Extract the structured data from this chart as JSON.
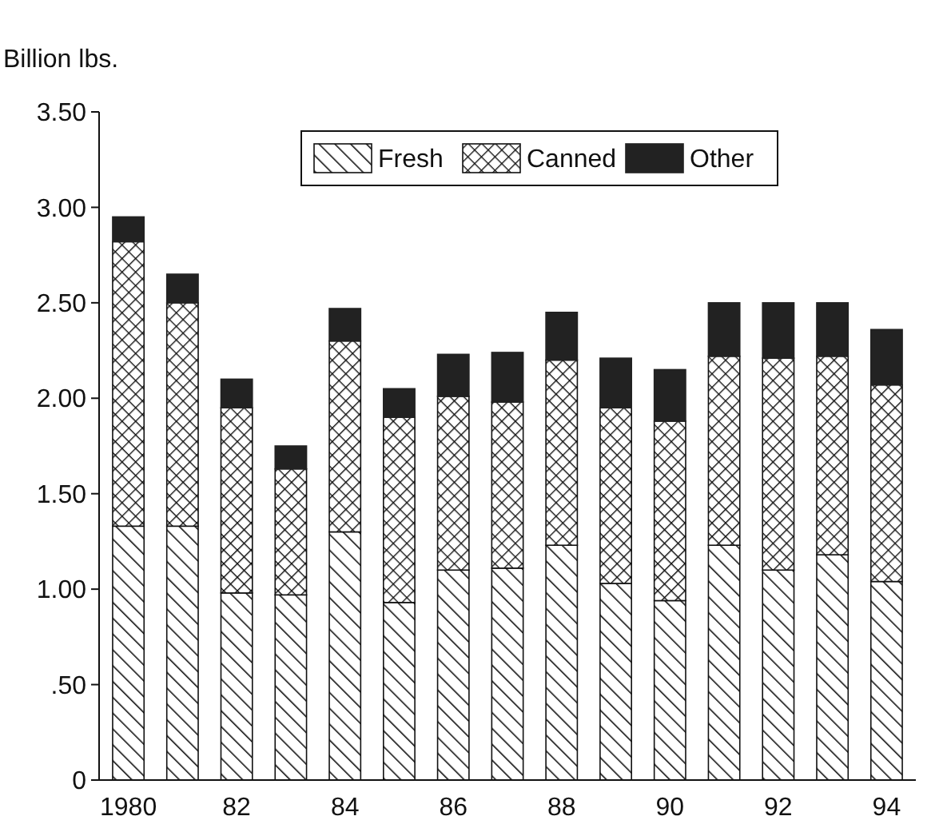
{
  "chart_data": {
    "type": "bar",
    "stacked": true,
    "ylabel": "Billion lbs.",
    "legend": "top",
    "categories": [
      "1980",
      null,
      "82",
      null,
      "84",
      null,
      "86",
      null,
      "88",
      null,
      "90",
      null,
      "92",
      null,
      "94"
    ],
    "ylim": [
      0,
      3.5
    ],
    "yticks": [
      0,
      {
        "value": 0.5,
        "label": ".50"
      },
      {
        "value": 1,
        "label": "1.00"
      },
      {
        "value": 1.5,
        "label": "1.50"
      },
      {
        "value": 2,
        "label": "2.00"
      },
      {
        "value": 2.5,
        "label": "2.50"
      },
      {
        "value": 3,
        "label": "3.00"
      },
      {
        "value": 3.5,
        "label": "3.50"
      }
    ],
    "series": [
      {
        "name": "Fresh",
        "color": "#111111",
        "values": [
          1.33,
          1.33,
          0.98,
          0.97,
          1.3,
          0.93,
          1.1,
          1.11,
          1.23,
          1.03,
          0.94,
          1.23,
          1.1,
          1.18,
          1.04
        ]
      },
      {
        "name": "Canned",
        "color": "#111111",
        "values": [
          1.49,
          1.17,
          0.97,
          0.66,
          1.0,
          0.97,
          0.91,
          0.87,
          0.97,
          0.92,
          0.94,
          0.99,
          1.11,
          1.04,
          1.03
        ]
      },
      {
        "name": "Other",
        "color": "#222222",
        "values": [
          0.13,
          0.15,
          0.15,
          0.12,
          0.17,
          0.15,
          0.22,
          0.26,
          0.25,
          0.26,
          0.27,
          0.28,
          0.29,
          0.28,
          0.29
        ]
      }
    ]
  }
}
